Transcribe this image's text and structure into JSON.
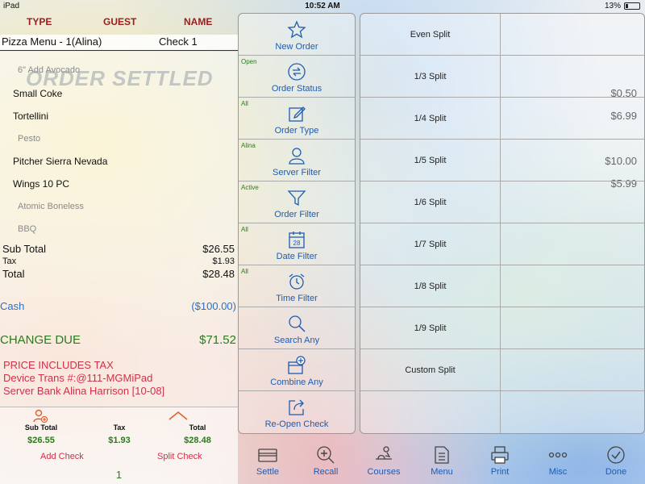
{
  "status_bar": {
    "device": "iPad",
    "time": "10:52 AM",
    "battery": "13%"
  },
  "columns": {
    "type": "TYPE",
    "guest": "GUEST",
    "name": "NAME"
  },
  "order": {
    "title": "Pizza Menu - 1(Alina)",
    "check": "Check 1",
    "stamp": "ORDER SETTLED",
    "lines": [
      {
        "text": "6\" Add Avocado",
        "price": "",
        "modifier": true
      },
      {
        "text": "Small Coke",
        "price": "$0.50",
        "modifier": false
      },
      {
        "text": "Tortellini",
        "price": "$6.99",
        "modifier": false
      },
      {
        "text": "Pesto",
        "price": "",
        "modifier": true
      },
      {
        "text": "Pitcher Sierra Nevada",
        "price": "$10.00",
        "modifier": false
      },
      {
        "text": "Wings 10 PC",
        "price": "$5.99",
        "modifier": false
      },
      {
        "text": "Atomic Boneless",
        "price": "",
        "modifier": true
      },
      {
        "text": "BBQ",
        "price": "",
        "modifier": true
      }
    ],
    "subtotal_label": "Sub Total",
    "subtotal": "$26.55",
    "tax_label": "Tax",
    "tax": "$1.93",
    "total_label": "Total",
    "total": "$28.48",
    "payment_label": "Cash",
    "payment": "($100.00)",
    "change_label": "CHANGE DUE",
    "change": "$71.52",
    "notes": [
      "PRICE INCLUDES TAX",
      "Device Trans #:@111-MGMiPad",
      "Server Bank Alina Harrison [10-08]"
    ]
  },
  "summary": {
    "subtotal_label": "Sub Total",
    "subtotal": "$26.55",
    "tax_label": "Tax",
    "tax": "$1.93",
    "total_label": "Total",
    "total": "$28.48",
    "add_check": "Add Check",
    "split_check": "Split Check",
    "page": "1"
  },
  "filters": [
    {
      "tag": "",
      "label": "New Order",
      "icon": "star-icon"
    },
    {
      "tag": "Open",
      "label": "Order Status",
      "icon": "exchange-icon"
    },
    {
      "tag": "All",
      "label": "Order Type",
      "icon": "edit-icon"
    },
    {
      "tag": "Alina",
      "label": "Server Filter",
      "icon": "person-icon"
    },
    {
      "tag": "Active",
      "label": "Order Filter",
      "icon": "funnel-icon"
    },
    {
      "tag": "All",
      "label": "Date Filter",
      "icon": "calendar-icon"
    },
    {
      "tag": "All",
      "label": "Time Filter",
      "icon": "alarm-clock-icon"
    },
    {
      "tag": "",
      "label": "Search Any",
      "icon": "search-icon"
    },
    {
      "tag": "",
      "label": "Combine Any",
      "icon": "combine-icon"
    },
    {
      "tag": "",
      "label": "Re-Open Check",
      "icon": "reopen-icon"
    }
  ],
  "calendar_day": "28",
  "splits": [
    "Even Split",
    "1/3 Split",
    "1/4 Split",
    "1/5 Split",
    "1/6 Split",
    "1/7 Split",
    "1/8 Split",
    "1/9 Split",
    "Custom Split",
    ""
  ],
  "toolbar": [
    {
      "label": "Settle",
      "icon": "card-icon"
    },
    {
      "label": "Recall",
      "icon": "zoom-in-icon"
    },
    {
      "label": "Courses",
      "icon": "courses-icon"
    },
    {
      "label": "Menu",
      "icon": "document-icon"
    },
    {
      "label": "Print",
      "icon": "printer-icon"
    },
    {
      "label": "Misc",
      "icon": "more-icon"
    },
    {
      "label": "Done",
      "icon": "check-circle-icon"
    }
  ],
  "colors": {
    "accent": "#1e5bb0",
    "header_red": "#9b1c1c",
    "money_green": "#2c7a1c",
    "note_red": "#d0304a"
  }
}
